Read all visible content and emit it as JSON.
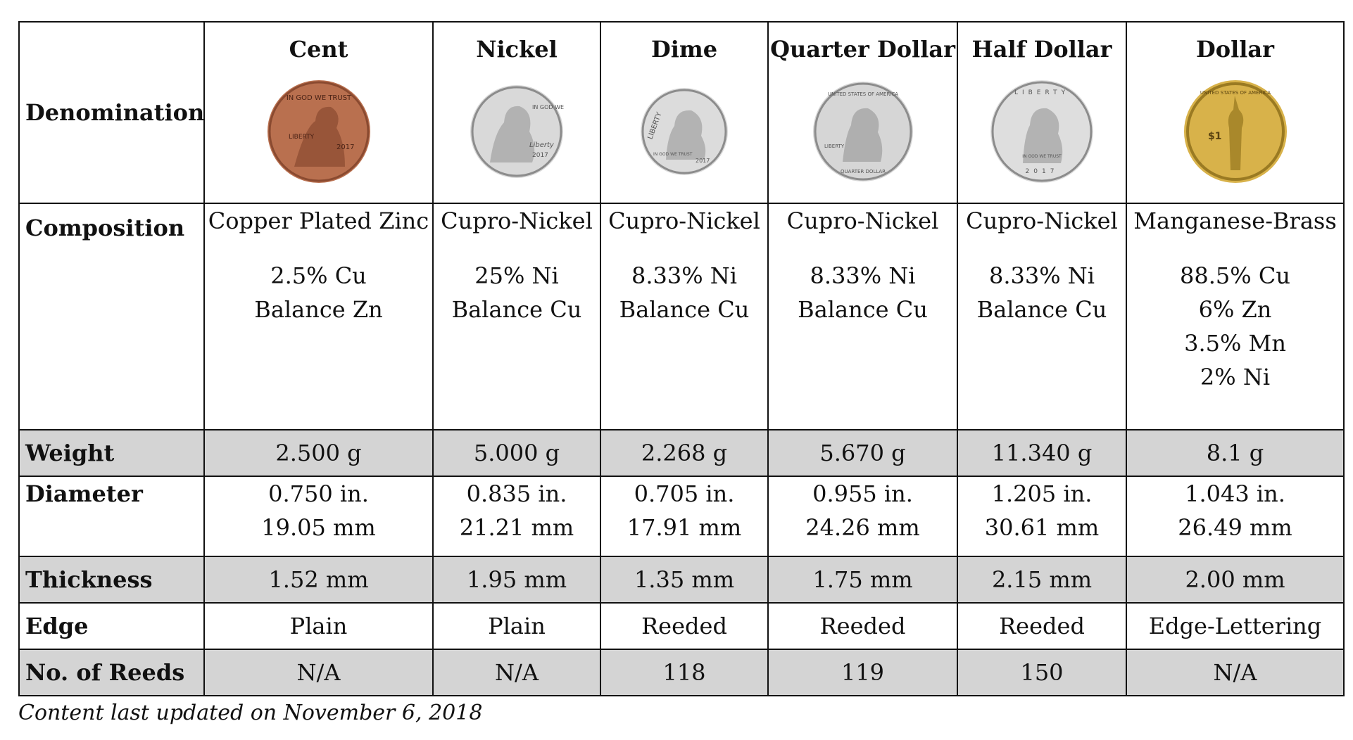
{
  "row_labels": {
    "denomination": "Denomination",
    "composition": "Composition",
    "weight": "Weight",
    "diameter": "Diameter",
    "thickness": "Thickness",
    "edge": "Edge",
    "reeds": "No. of Reeds"
  },
  "coins": [
    {
      "name": "Cent",
      "composition": "Copper Plated Zinc",
      "composition_lines": [
        "2.5% Cu",
        "Balance Zn"
      ],
      "weight": "2.500 g",
      "diameter_in": "0.750 in.",
      "diameter_mm": "19.05 mm",
      "thickness": "1.52 mm",
      "edge": "Plain",
      "reeds": "N/A",
      "coin_color": "#b9704f",
      "coin_rim": "#8a4a30",
      "coin_text": [
        "IN GOD WE TRUST",
        "LIBERTY",
        "2017"
      ]
    },
    {
      "name": "Nickel",
      "composition": "Cupro-Nickel",
      "composition_lines": [
        "25% Ni",
        "Balance Cu"
      ],
      "weight": "5.000 g",
      "diameter_in": "0.835 in.",
      "diameter_mm": "21.21 mm",
      "thickness": "1.95 mm",
      "edge": "Plain",
      "reeds": "N/A",
      "coin_color": "#d9d9d9",
      "coin_rim": "#8c8c8c",
      "coin_text": [
        "IN GOD WE TRUST",
        "Liberty",
        "2017"
      ]
    },
    {
      "name": "Dime",
      "composition": "Cupro-Nickel",
      "composition_lines": [
        "8.33% Ni",
        "Balance Cu"
      ],
      "weight": "2.268 g",
      "diameter_in": "0.705 in.",
      "diameter_mm": "17.91 mm",
      "thickness": "1.35 mm",
      "edge": "Reeded",
      "reeds": "118",
      "coin_color": "#dcdcdc",
      "coin_rim": "#8c8c8c",
      "coin_text": [
        "LIBERTY",
        "IN GOD WE TRUST",
        "2017"
      ]
    },
    {
      "name": "Quarter Dollar",
      "composition": "Cupro-Nickel",
      "composition_lines": [
        "8.33% Ni",
        "Balance Cu"
      ],
      "weight": "5.670 g",
      "diameter_in": "0.955 in.",
      "diameter_mm": "24.26 mm",
      "thickness": "1.75 mm",
      "edge": "Reeded",
      "reeds": "119",
      "coin_color": "#d6d6d6",
      "coin_rim": "#8c8c8c",
      "coin_text": [
        "UNITED STATES OF AMERICA",
        "LIBERTY",
        "QUARTER DOLLAR"
      ]
    },
    {
      "name": "Half Dollar",
      "composition": "Cupro-Nickel",
      "composition_lines": [
        "8.33% Ni",
        "Balance Cu"
      ],
      "weight": "11.340 g",
      "diameter_in": "1.205 in.",
      "diameter_mm": "30.61 mm",
      "thickness": "2.15 mm",
      "edge": "Reeded",
      "reeds": "150",
      "coin_color": "#dedede",
      "coin_rim": "#8c8c8c",
      "coin_text": [
        "LIBERTY",
        "IN GOD WE TRUST",
        "2017"
      ]
    },
    {
      "name": "Dollar",
      "composition": "Manganese-Brass",
      "composition_lines": [
        "88.5% Cu",
        "6% Zn",
        "3.5% Mn",
        "2% Ni"
      ],
      "weight": "8.1 g",
      "diameter_in": "1.043 in.",
      "diameter_mm": "26.49 mm",
      "thickness": "2.00 mm",
      "edge": "Edge-Lettering",
      "reeds": "N/A",
      "coin_color": "#d8b24a",
      "coin_rim": "#9a7a22",
      "coin_text": [
        "UNITED STATES OF AMERICA",
        "$1"
      ]
    }
  ],
  "footnote": "Content last updated on November 6, 2018"
}
